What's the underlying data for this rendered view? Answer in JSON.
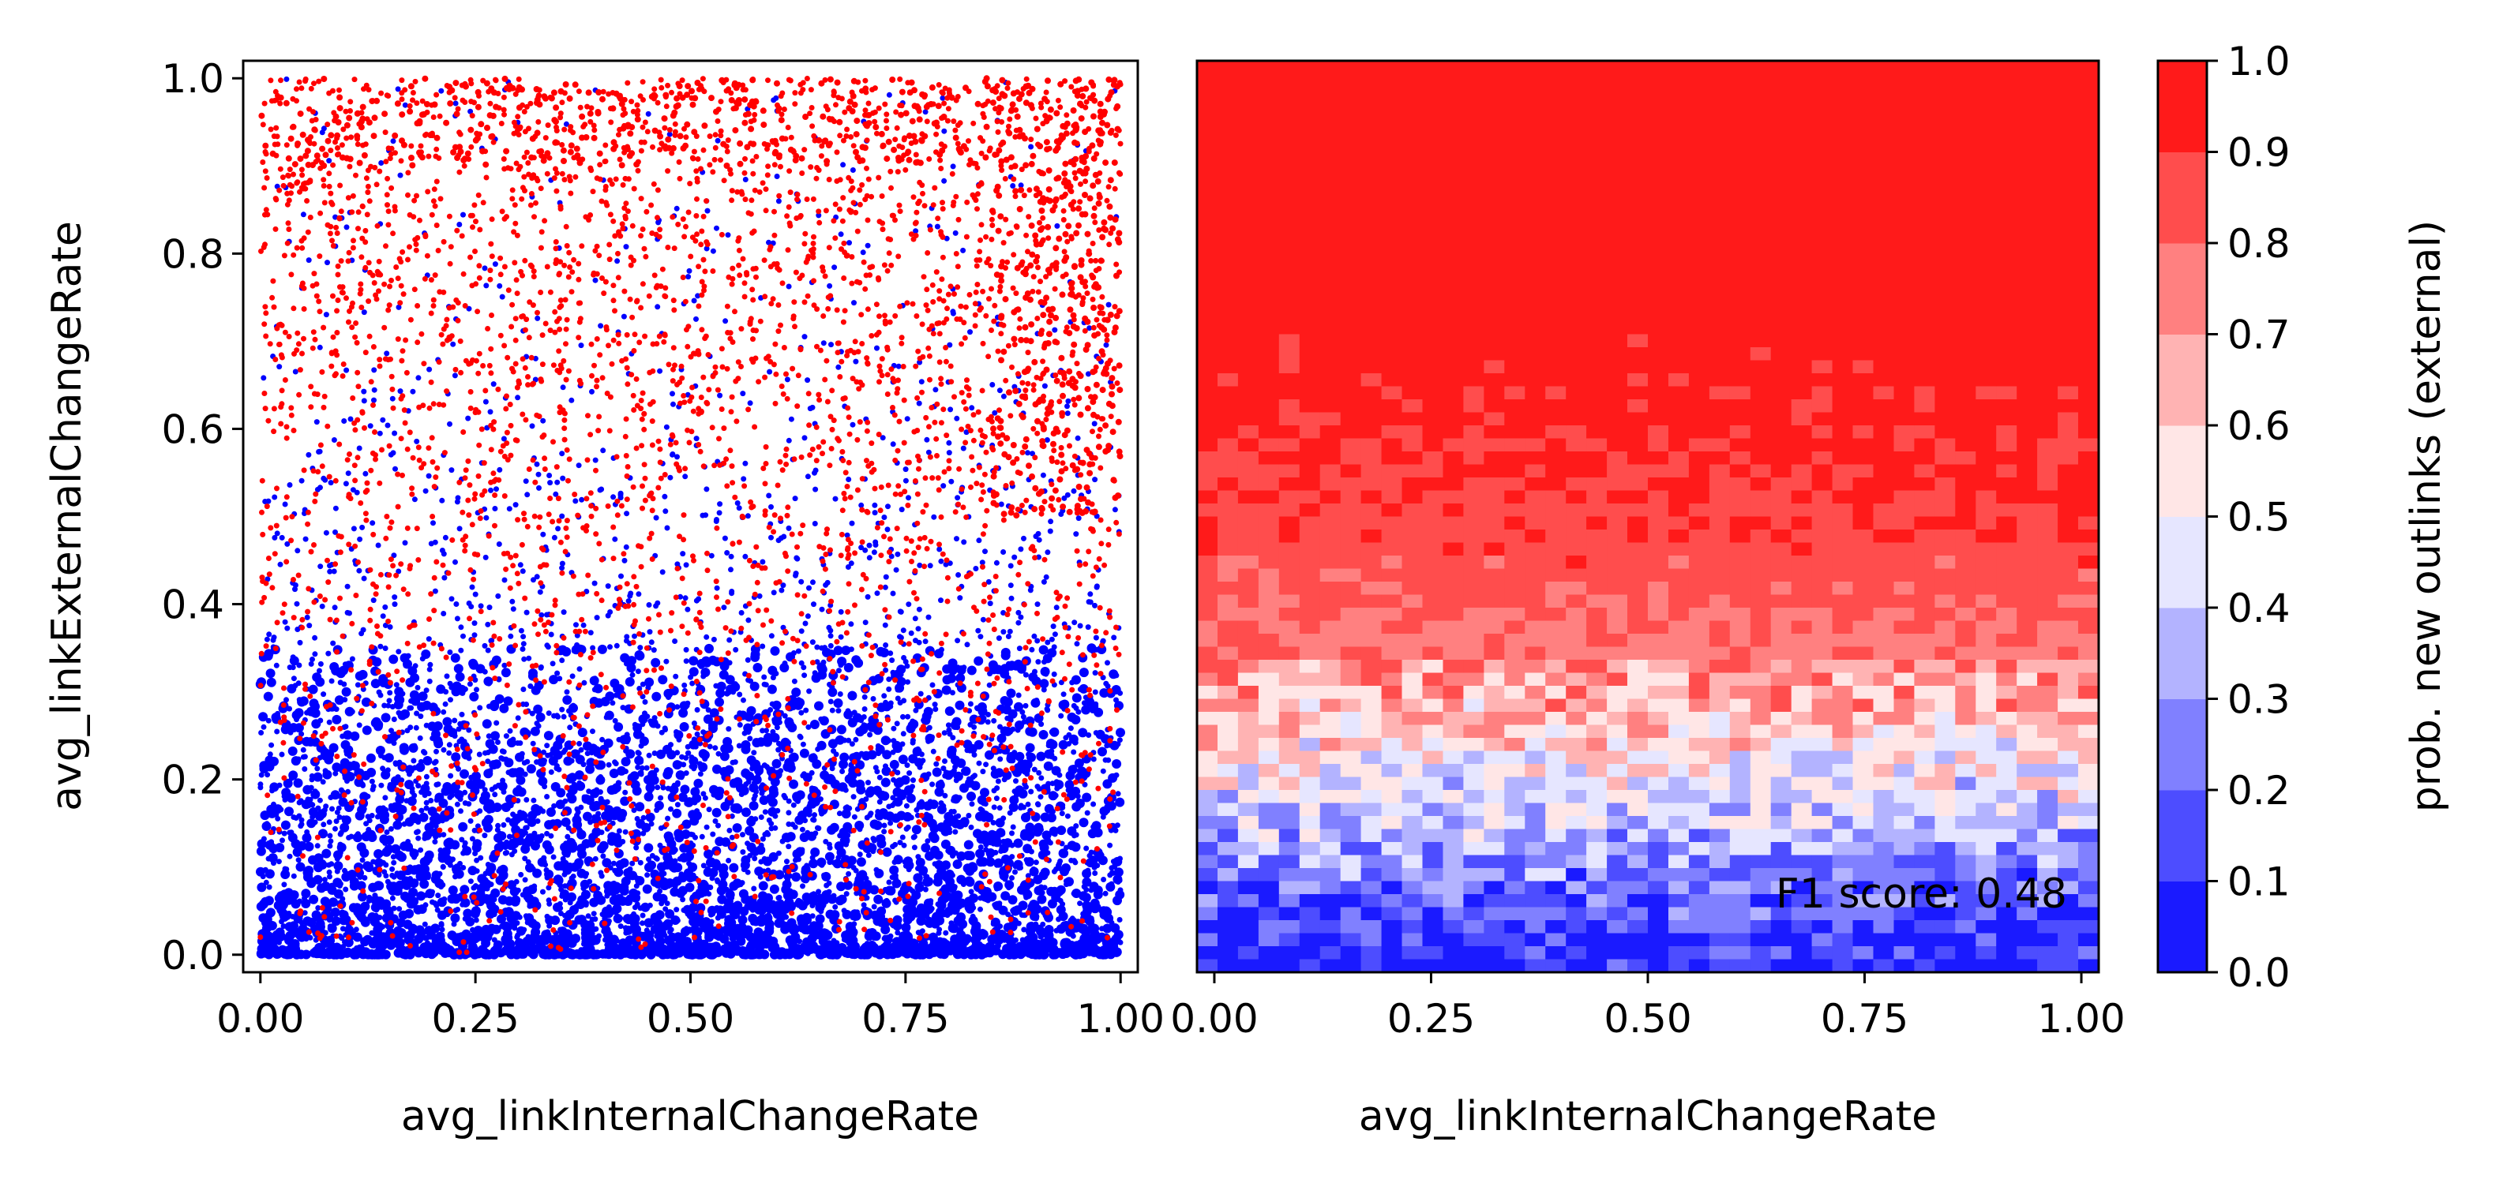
{
  "chart_data": [
    {
      "type": "scatter",
      "xlabel": "avg_linkInternalChangeRate",
      "ylabel": "avg_linkExternalChangeRate",
      "xlim": [
        -0.02,
        1.02
      ],
      "ylim": [
        -0.02,
        1.02
      ],
      "x_ticks": [
        "0.00",
        "0.25",
        "0.50",
        "0.75",
        "1.00"
      ],
      "y_ticks": [
        "0.0",
        "0.2",
        "0.4",
        "0.6",
        "0.8",
        "1.0"
      ],
      "series": [
        {
          "color": "#0000ff",
          "density_profile": {
            "y": [
              0.0,
              0.1,
              0.2,
              0.3,
              0.4,
              0.5,
              0.6,
              0.7,
              0.8,
              0.9,
              1.0
            ],
            "relative_density": [
              1.0,
              0.95,
              0.8,
              0.6,
              0.4,
              0.22,
              0.15,
              0.1,
              0.08,
              0.06,
              0.05
            ]
          }
        },
        {
          "color": "#ff0000",
          "density_profile": {
            "y": [
              0.0,
              0.1,
              0.2,
              0.3,
              0.4,
              0.5,
              0.6,
              0.7,
              0.8,
              0.9,
              1.0
            ],
            "relative_density": [
              0.15,
              0.18,
              0.22,
              0.28,
              0.35,
              0.5,
              0.6,
              0.7,
              0.75,
              0.85,
              1.0
            ]
          }
        }
      ]
    },
    {
      "type": "heatmap",
      "xlabel": "avg_linkInternalChangeRate",
      "xlim": [
        -0.02,
        1.02
      ],
      "ylim": [
        -0.02,
        1.02
      ],
      "x_ticks": [
        "0.00",
        "0.25",
        "0.50",
        "0.75",
        "1.00"
      ],
      "probability_profile": {
        "y": [
          0.0,
          0.05,
          0.1,
          0.15,
          0.2,
          0.25,
          0.3,
          0.35,
          0.4,
          0.5,
          0.6,
          0.7,
          0.8,
          1.0
        ],
        "p": [
          0.03,
          0.12,
          0.22,
          0.35,
          0.45,
          0.55,
          0.68,
          0.76,
          0.82,
          0.88,
          0.93,
          0.96,
          0.97,
          0.98
        ]
      },
      "annotation": "F1 score: 0.48",
      "colorbar": {
        "label": "prob. new outlinks (external)",
        "range": [
          0,
          1
        ],
        "ticks": [
          "0.0",
          "0.1",
          "0.2",
          "0.3",
          "0.4",
          "0.5",
          "0.6",
          "0.7",
          "0.8",
          "0.9",
          "1.0"
        ],
        "colors": [
          "#1a1aff",
          "#4d4dff",
          "#8080ff",
          "#b3b3ff",
          "#e6e6ff",
          "#ffe6e6",
          "#ffb3b3",
          "#ff8080",
          "#ff4d4d",
          "#ff1a1a"
        ]
      }
    }
  ]
}
